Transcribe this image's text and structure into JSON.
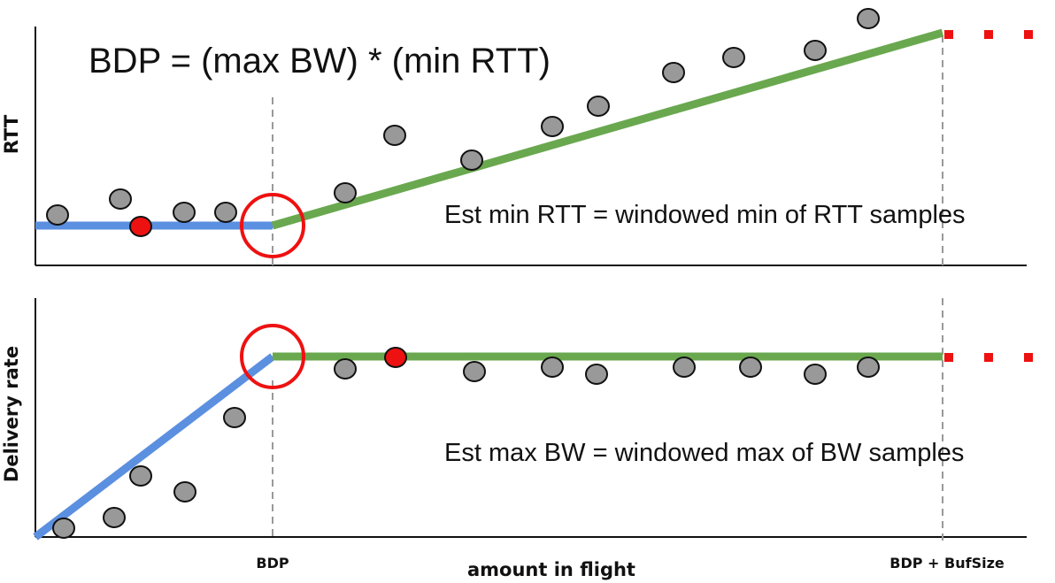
{
  "formula": "BDP = (max BW) * (min RTT)",
  "top_panel": {
    "ylabel": "RTT",
    "annotation": "Est min RTT = windowed min of RTT samples"
  },
  "bottom_panel": {
    "ylabel": "Delivery rate",
    "annotation": "Est max BW = windowed max of BW samples"
  },
  "xlabel": "amount in flight",
  "x_ticks": [
    "BDP",
    "BDP + BufSize"
  ],
  "colors": {
    "app_limited_line": "#5b8fe0",
    "bandwidth_limited_line": "#6aa84f",
    "buffer_limited": "#ee1111",
    "highlight_circle": "#ee1111",
    "sample": "#999999",
    "selected_sample": "#ee1111"
  }
}
